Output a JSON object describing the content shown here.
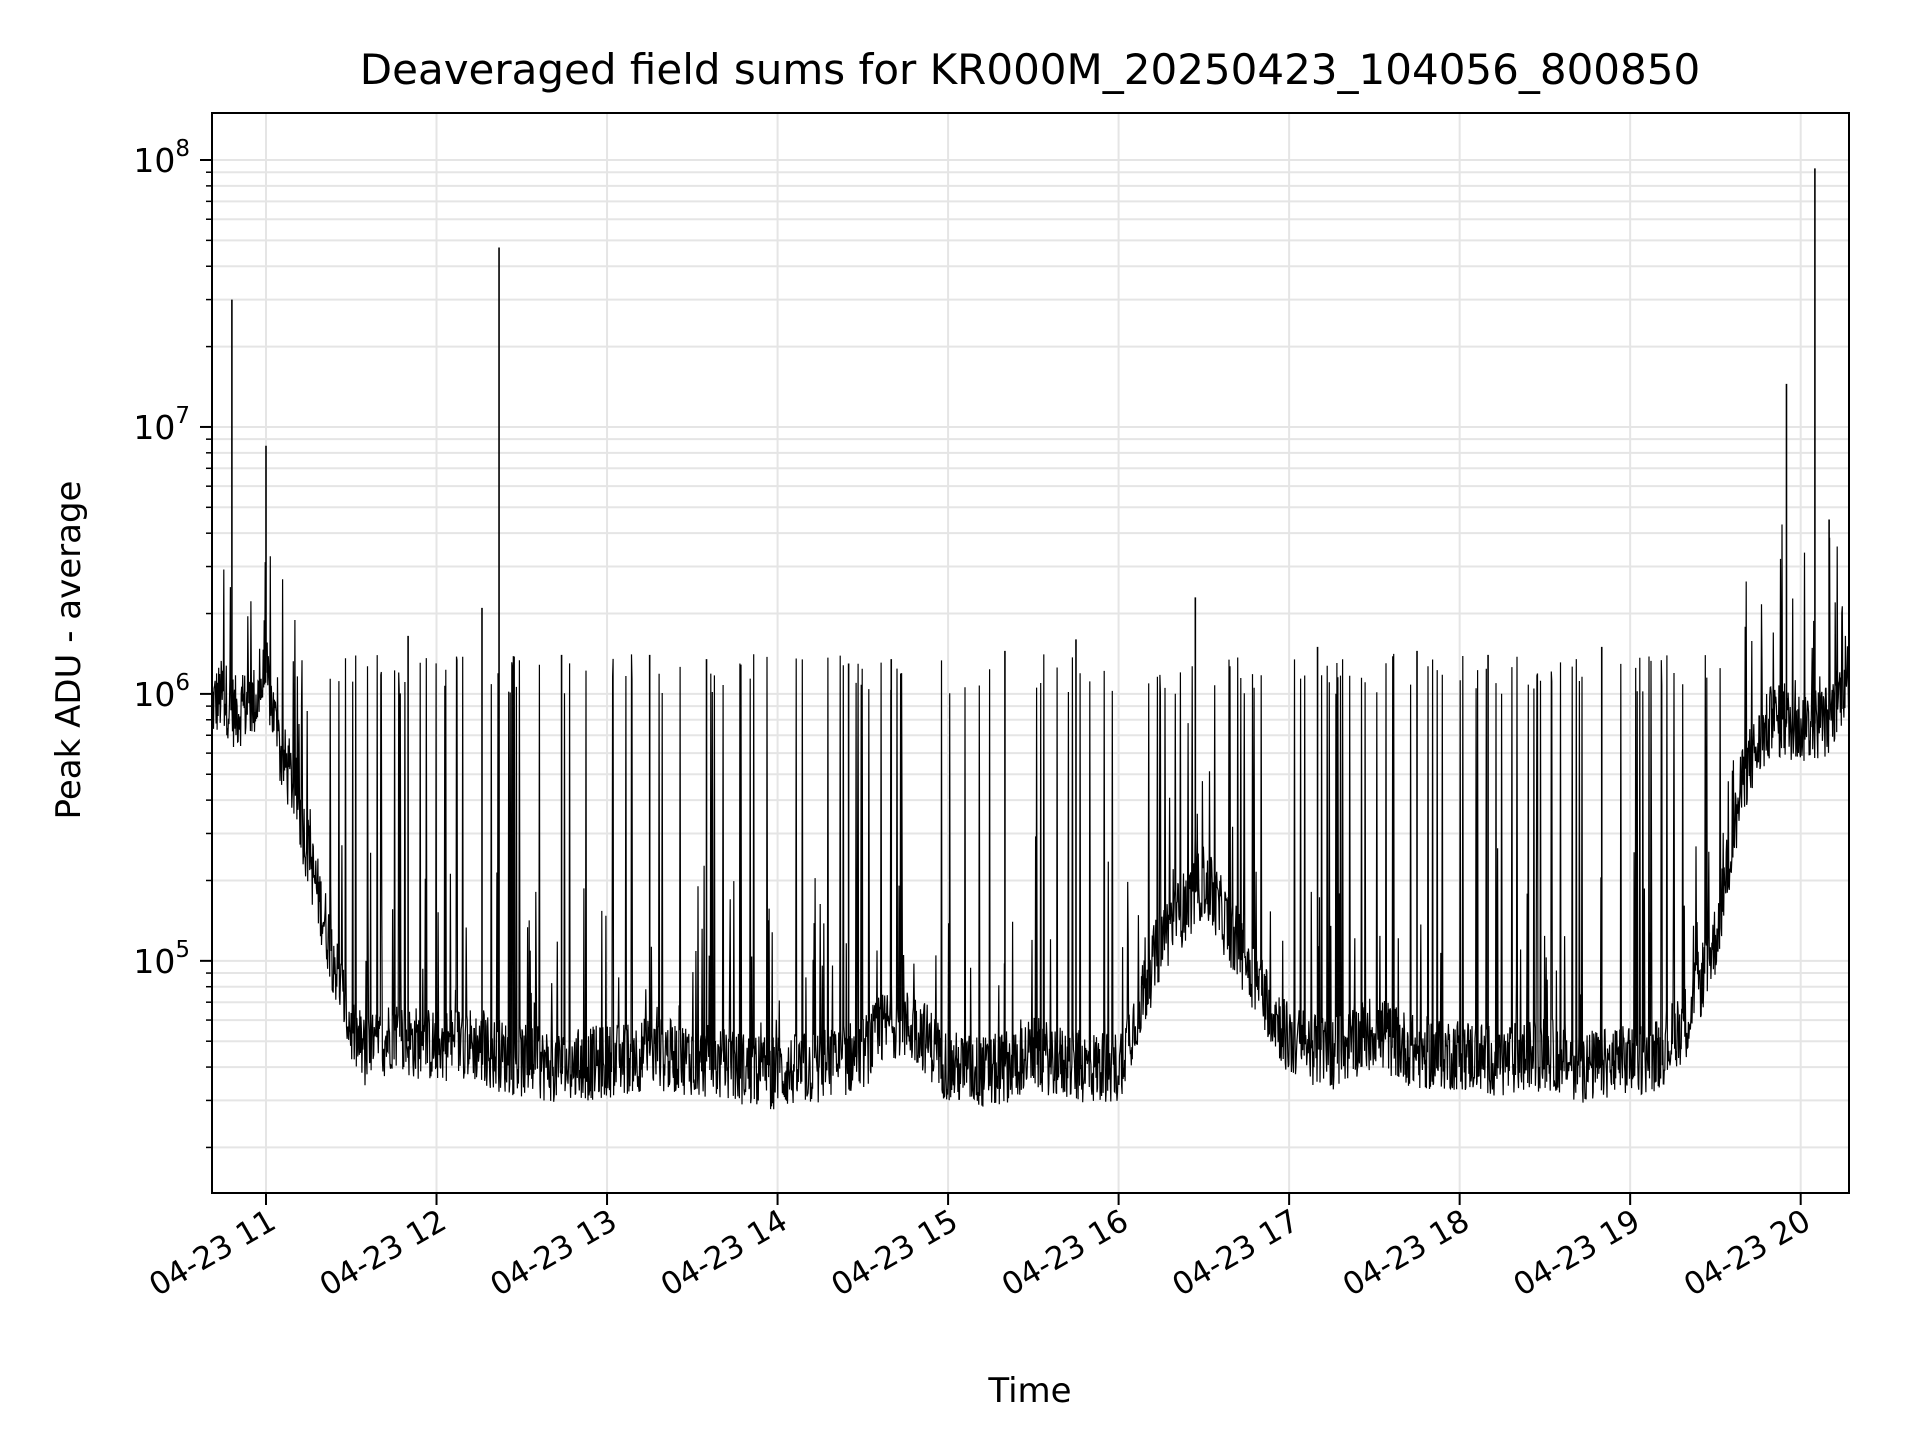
{
  "chart_data": {
    "type": "line",
    "title": "Deaveraged field sums for KR000M_20250423_104056_800850",
    "xlabel": "Time",
    "ylabel": "Peak ADU - average",
    "xscale": "time",
    "yscale": "log",
    "xlim": [
      "2025-04-23 10:41",
      "2025-04-23 20:17"
    ],
    "ylim": [
      13500,
      150000000
    ],
    "grid": true,
    "legend": "none",
    "colors": {
      "line": "#000000",
      "grid": "#e5e5e5",
      "axes": "#000000"
    },
    "x_ticks": [
      {
        "value": "2025-04-23 11:00",
        "label": "04-23 11"
      },
      {
        "value": "2025-04-23 12:00",
        "label": "04-23 12"
      },
      {
        "value": "2025-04-23 13:00",
        "label": "04-23 13"
      },
      {
        "value": "2025-04-23 14:00",
        "label": "04-23 14"
      },
      {
        "value": "2025-04-23 15:00",
        "label": "04-23 15"
      },
      {
        "value": "2025-04-23 16:00",
        "label": "04-23 16"
      },
      {
        "value": "2025-04-23 17:00",
        "label": "04-23 17"
      },
      {
        "value": "2025-04-23 18:00",
        "label": "04-23 18"
      },
      {
        "value": "2025-04-23 19:00",
        "label": "04-23 19"
      },
      {
        "value": "2025-04-23 20:00",
        "label": "04-23 20"
      }
    ],
    "y_ticks": [
      {
        "value": 100000,
        "base": "10",
        "exp": "5"
      },
      {
        "value": 1000000,
        "base": "10",
        "exp": "6"
      },
      {
        "value": 10000000,
        "base": "10",
        "exp": "7"
      },
      {
        "value": 100000000,
        "base": "10",
        "exp": "8"
      }
    ],
    "series": [
      {
        "x": [
          "2025-04-23 10:41",
          "2025-04-23 10:45",
          "2025-04-23 10:49",
          "2025-04-23 10:53",
          "2025-04-23 10:57",
          "2025-04-23 11:00",
          "2025-04-23 11:05",
          "2025-04-23 11:10",
          "2025-04-23 11:15",
          "2025-04-23 11:20",
          "2025-04-23 11:25",
          "2025-04-23 11:30",
          "2025-04-23 11:35",
          "2025-04-23 11:40",
          "2025-04-23 11:45",
          "2025-04-23 11:50",
          "2025-04-23 12:00",
          "2025-04-23 12:10",
          "2025-04-23 12:20",
          "2025-04-23 12:30",
          "2025-04-23 12:45",
          "2025-04-23 13:00",
          "2025-04-23 13:15",
          "2025-04-23 13:30",
          "2025-04-23 13:45",
          "2025-04-23 14:00",
          "2025-04-23 14:15",
          "2025-04-23 14:30",
          "2025-04-23 14:40",
          "2025-04-23 14:50",
          "2025-04-23 15:00",
          "2025-04-23 15:15",
          "2025-04-23 15:30",
          "2025-04-23 15:45",
          "2025-04-23 16:00",
          "2025-04-23 16:15",
          "2025-04-23 16:30",
          "2025-04-23 16:45",
          "2025-04-23 17:00",
          "2025-04-23 17:15",
          "2025-04-23 17:30",
          "2025-04-23 17:45",
          "2025-04-23 18:00",
          "2025-04-23 18:15",
          "2025-04-23 18:30",
          "2025-04-23 18:45",
          "2025-04-23 19:00",
          "2025-04-23 19:10",
          "2025-04-23 19:20",
          "2025-04-23 19:30",
          "2025-04-23 19:40",
          "2025-04-23 19:50",
          "2025-04-23 20:00",
          "2025-04-23 20:10",
          "2025-04-23 20:17"
        ],
        "y": [
          900000,
          1000000,
          850000,
          900000,
          950000,
          1200000,
          600000,
          450000,
          250000,
          150000,
          90000,
          55000,
          45000,
          48000,
          55000,
          50000,
          48000,
          50000,
          45000,
          42000,
          40000,
          42000,
          45000,
          43000,
          40000,
          38000,
          40000,
          45000,
          60000,
          55000,
          40000,
          38000,
          45000,
          40000,
          40000,
          120000,
          200000,
          100000,
          50000,
          45000,
          55000,
          45000,
          45000,
          42000,
          45000,
          40000,
          42000,
          45000,
          60000,
          120000,
          500000,
          800000,
          750000,
          800000,
          1200000
        ]
      }
    ],
    "spikes": [
      {
        "x": "2025-04-23 10:48",
        "y": 30000000
      },
      {
        "x": "2025-04-23 11:00",
        "y": 8500000
      },
      {
        "x": "2025-04-23 11:50",
        "y": 1650000
      },
      {
        "x": "2025-04-23 12:16",
        "y": 2100000
      },
      {
        "x": "2025-04-23 12:22",
        "y": 47000000
      },
      {
        "x": "2025-04-23 12:44",
        "y": 1400000
      },
      {
        "x": "2025-04-23 13:15",
        "y": 1400000
      },
      {
        "x": "2025-04-23 13:35",
        "y": 1350000
      },
      {
        "x": "2025-04-23 14:25",
        "y": 1300000
      },
      {
        "x": "2025-04-23 14:40",
        "y": 1350000
      },
      {
        "x": "2025-04-23 15:20",
        "y": 1450000
      },
      {
        "x": "2025-04-23 15:45",
        "y": 1600000
      },
      {
        "x": "2025-04-23 16:27",
        "y": 2300000
      },
      {
        "x": "2025-04-23 17:10",
        "y": 1500000
      },
      {
        "x": "2025-04-23 17:45",
        "y": 1450000
      },
      {
        "x": "2025-04-23 18:10",
        "y": 1400000
      },
      {
        "x": "2025-04-23 18:50",
        "y": 1500000
      },
      {
        "x": "2025-04-23 19:55",
        "y": 14500000
      },
      {
        "x": "2025-04-23 20:05",
        "y": 93000000
      },
      {
        "x": "2025-04-23 20:10",
        "y": 4500000
      }
    ]
  }
}
